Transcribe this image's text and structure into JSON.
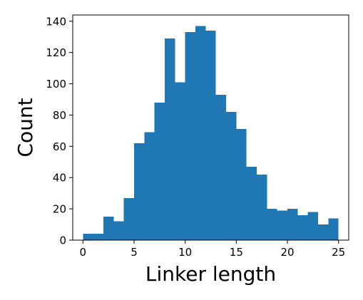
{
  "chart_data": {
    "type": "bar",
    "xlabel": "Linker length",
    "ylabel": "Count",
    "xlim": [
      -1,
      26
    ],
    "ylim": [
      0,
      144
    ],
    "x_ticks": [
      0,
      5,
      10,
      15,
      20,
      25
    ],
    "y_ticks": [
      0,
      20,
      40,
      60,
      80,
      100,
      120,
      140
    ],
    "bin_edges": [
      0,
      1,
      2,
      3,
      4,
      5,
      6,
      7,
      8,
      9,
      10,
      11,
      12,
      13,
      14,
      15,
      16,
      17,
      18,
      19,
      20,
      21,
      22,
      23,
      24,
      25
    ],
    "values": [
      4,
      4,
      15,
      12,
      27,
      62,
      69,
      88,
      129,
      101,
      133,
      137,
      134,
      93,
      82,
      71,
      47,
      42,
      20,
      19,
      20,
      16,
      18,
      10,
      14
    ],
    "colors": {
      "bar": "#1f77b4",
      "axis": "#000000"
    },
    "grid": false
  }
}
